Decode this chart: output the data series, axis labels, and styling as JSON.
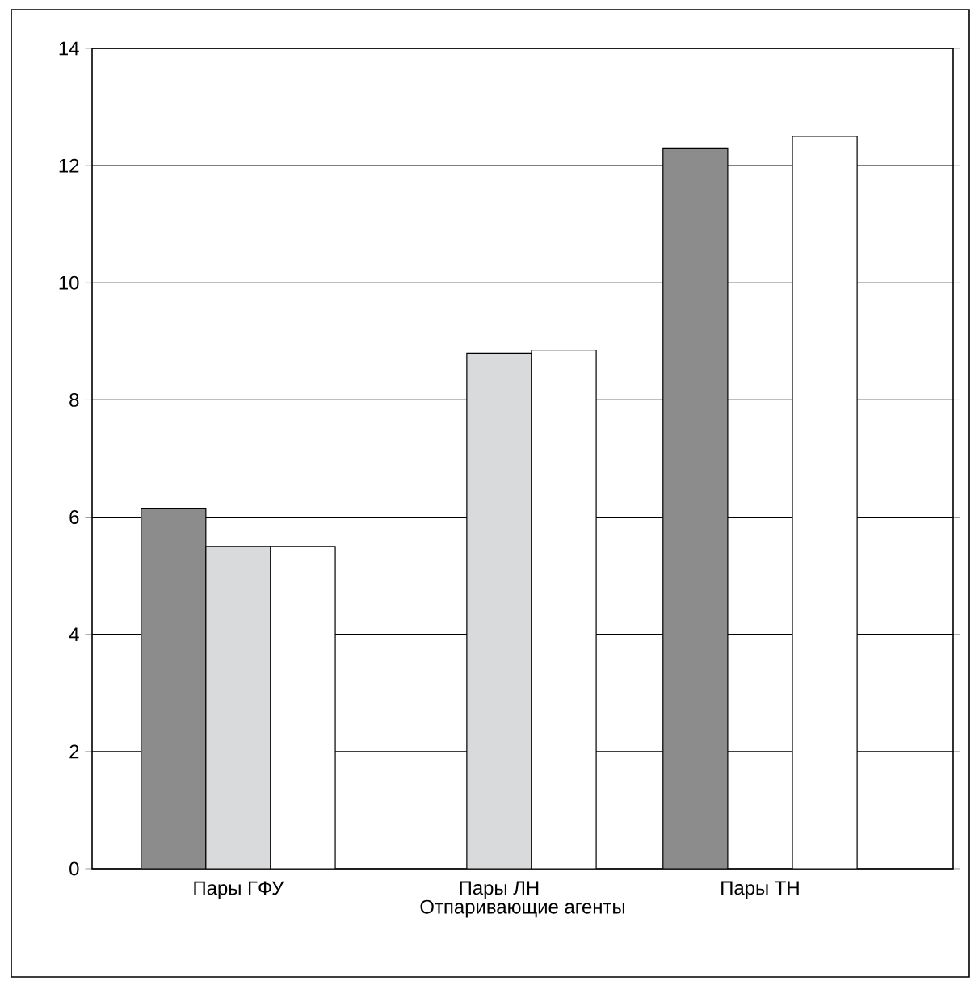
{
  "chart_data": {
    "type": "bar",
    "xlabel": "Отпаривающие агенты",
    "categories": [
      "Пары ГФУ",
      "Пары ЛН",
      "Пары ТН"
    ],
    "series": [
      {
        "color": "#8c8c8c",
        "values": [
          6.15,
          null,
          12.3
        ]
      },
      {
        "color": "#d9dadc",
        "values": [
          5.5,
          8.8,
          null
        ]
      },
      {
        "color": "#ffffff",
        "values": [
          5.5,
          8.85,
          12.5
        ]
      }
    ],
    "ylim": [
      0,
      14
    ],
    "yticks": [
      0,
      2,
      4,
      6,
      8,
      10,
      12,
      14
    ],
    "grid": "y"
  }
}
